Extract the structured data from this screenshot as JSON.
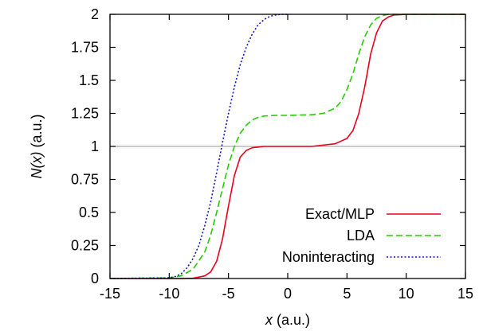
{
  "chart_data": {
    "type": "line",
    "xlabel": {
      "var": "x",
      "unit": " (a.u.)"
    },
    "ylabel": {
      "var": "N(x)",
      "unit": " (a.u.)"
    },
    "xlim": [
      -15,
      15
    ],
    "ylim": [
      0,
      2
    ],
    "xticks": [
      -15,
      -10,
      -5,
      0,
      5,
      10,
      15
    ],
    "xtick_labels": [
      "-15",
      "-10",
      "-5",
      "0",
      "5",
      "10",
      "15"
    ],
    "yticks": [
      0,
      0.25,
      0.5,
      0.75,
      1,
      1.25,
      1.5,
      1.75,
      2
    ],
    "ytick_labels": [
      "0",
      "0.25",
      "0.5",
      "0.75",
      "1",
      "1.25",
      "1.5",
      "1.75",
      "2"
    ],
    "reference_line": {
      "y": 1,
      "color": "#aaaaaa"
    },
    "legend_position": "bottom-right",
    "series": [
      {
        "name": "Exact/MLP",
        "color": "#e8001c",
        "dash": "solid",
        "x": [
          -15,
          -9,
          -8,
          -7,
          -6.5,
          -6,
          -5.5,
          -5,
          -4.5,
          -4,
          -3.5,
          -3,
          -2.5,
          -2,
          0,
          2,
          4,
          5,
          5.5,
          6,
          6.5,
          7,
          7.5,
          8,
          8.5,
          9,
          10,
          15
        ],
        "y": [
          0,
          0,
          0.002,
          0.02,
          0.05,
          0.13,
          0.3,
          0.55,
          0.78,
          0.92,
          0.97,
          0.99,
          0.995,
          1.0,
          1.0,
          1.0,
          1.02,
          1.06,
          1.12,
          1.25,
          1.45,
          1.7,
          1.86,
          1.95,
          1.98,
          1.995,
          2.0,
          2.0
        ]
      },
      {
        "name": "LDA",
        "color": "#22cc00",
        "dash": "dashed",
        "x": [
          -15,
          -10,
          -9,
          -8,
          -7,
          -6.5,
          -6,
          -5.5,
          -5,
          -4.5,
          -4,
          -3.5,
          -3,
          -2.5,
          -2,
          -1,
          0,
          2,
          3,
          4,
          4.5,
          5,
          5.5,
          6,
          6.5,
          7,
          7.5,
          8,
          8.5,
          9,
          10,
          15
        ],
        "y": [
          0,
          0.005,
          0.02,
          0.07,
          0.2,
          0.33,
          0.5,
          0.68,
          0.86,
          1.0,
          1.1,
          1.16,
          1.2,
          1.22,
          1.23,
          1.235,
          1.235,
          1.24,
          1.25,
          1.29,
          1.34,
          1.43,
          1.55,
          1.7,
          1.83,
          1.92,
          1.97,
          1.99,
          2.0,
          2.0,
          2.0,
          2.0
        ]
      },
      {
        "name": "Noninteracting",
        "color": "#1010cc",
        "dash": "dotted",
        "x": [
          -15,
          -10,
          -9.5,
          -9,
          -8.5,
          -8,
          -7.5,
          -7,
          -6.5,
          -6,
          -5.5,
          -5,
          -4.5,
          -4,
          -3.5,
          -3,
          -2.5,
          -2,
          -1.5,
          -1,
          -0.5,
          0
        ],
        "y": [
          0,
          0.005,
          0.015,
          0.035,
          0.08,
          0.15,
          0.25,
          0.4,
          0.58,
          0.8,
          1.03,
          1.25,
          1.45,
          1.62,
          1.75,
          1.85,
          1.92,
          1.96,
          1.985,
          1.995,
          2.0,
          2.0
        ]
      }
    ]
  }
}
